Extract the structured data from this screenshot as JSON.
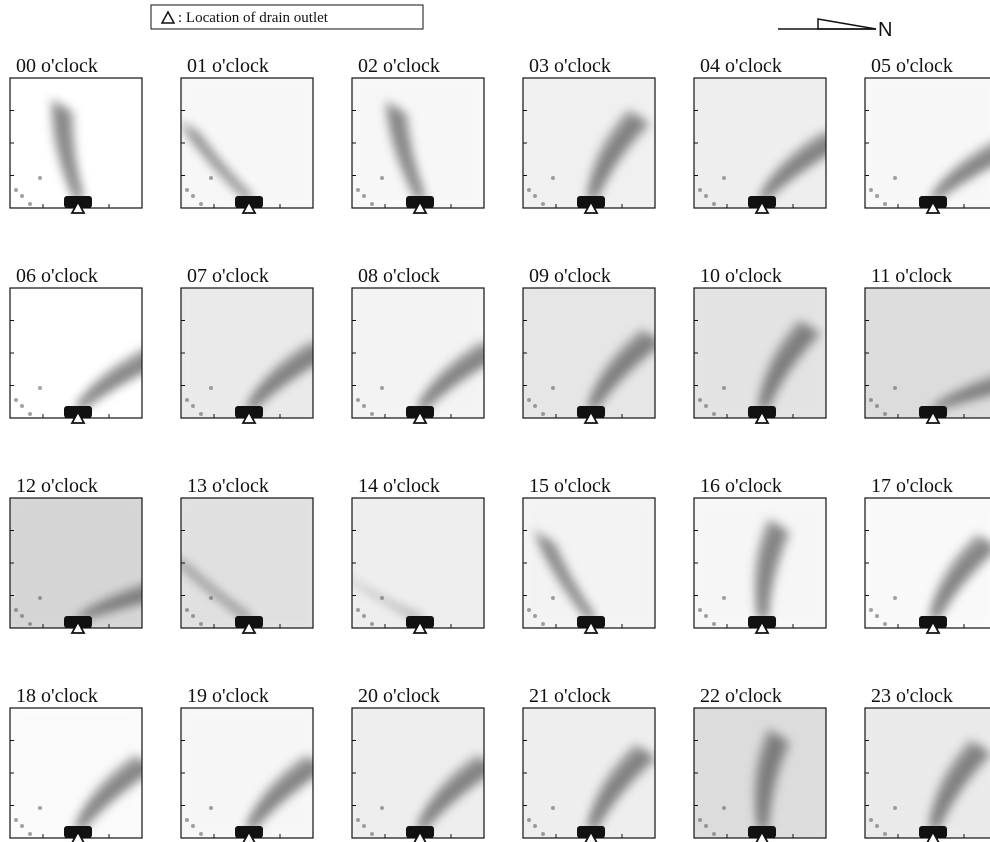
{
  "legend": {
    "text": ": Location of drain outlet"
  },
  "north_label": "N",
  "panels": [
    {
      "label": "00 o'clock"
    },
    {
      "label": "01 o'clock"
    },
    {
      "label": "02 o'clock"
    },
    {
      "label": "03 o'clock"
    },
    {
      "label": "04 o'clock"
    },
    {
      "label": "05 o'clock"
    },
    {
      "label": "06 o'clock"
    },
    {
      "label": "07 o'clock"
    },
    {
      "label": "08 o'clock"
    },
    {
      "label": "09 o'clock"
    },
    {
      "label": "10 o'clock"
    },
    {
      "label": "11 o'clock"
    },
    {
      "label": "12 o'clock"
    },
    {
      "label": "13 o'clock"
    },
    {
      "label": "14 o'clock"
    },
    {
      "label": "15 o'clock"
    },
    {
      "label": "16 o'clock"
    },
    {
      "label": "17 o'clock"
    },
    {
      "label": "18 o'clock"
    },
    {
      "label": "19 o'clock"
    },
    {
      "label": "20 o'clock"
    },
    {
      "label": "21 o'clock"
    },
    {
      "label": "22 o'clock"
    },
    {
      "label": "23 o'clock"
    }
  ]
}
